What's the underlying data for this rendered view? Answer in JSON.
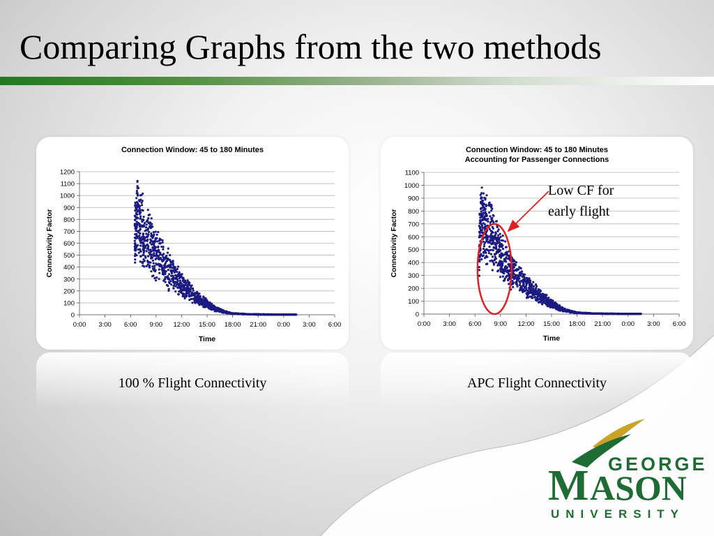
{
  "slide": {
    "title": "Comparing Graphs from the two methods",
    "annotation_lines": [
      "Low CF for",
      "early flight"
    ]
  },
  "captions": {
    "left": "100 % Flight Connectivity",
    "right": "APC Flight Connectivity"
  },
  "logo": {
    "line1": "GEORGE",
    "line2_initial": "M",
    "line2_rest": "ASON",
    "line3": "UNIVERSITY",
    "green": "#1f6b34",
    "gold": "#c9a227"
  },
  "colors": {
    "points": "#1a1a80",
    "highlight": "#e02020",
    "accent_green": "#1e7a1e"
  },
  "chart_data": [
    {
      "type": "scatter",
      "title": "Connection Window: 45 to 180 Minutes",
      "xlabel": "Time",
      "ylabel": "Connectivity Factor",
      "x_ticks": [
        "0:00",
        "3:00",
        "6:00",
        "9:00",
        "12:00",
        "15:00",
        "18:00",
        "21:00",
        "0:00",
        "3:00",
        "6:00"
      ],
      "xlim": [
        0,
        30
      ],
      "ylim": [
        0,
        1200
      ],
      "y_ticks": [
        0,
        100,
        200,
        300,
        400,
        500,
        600,
        700,
        800,
        900,
        1000,
        1100,
        1200
      ],
      "grid": true,
      "series": [
        {
          "point_count": 1400,
          "envelope": {
            "x": [
              6.5,
              6.8,
              7,
              8,
              9,
              10,
              11,
              12,
              13,
              14,
              15,
              16,
              17,
              18,
              20,
              22,
              24,
              25.5
            ],
            "y": [
              780,
              1040,
              950,
              780,
              640,
              520,
              420,
              320,
              240,
              170,
              110,
              60,
              30,
              12,
              5,
              3,
              2,
              2
            ]
          }
        }
      ]
    },
    {
      "type": "scatter",
      "title": "Connection Window: 45 to 180 Minutes",
      "subtitle": "Accounting for Passenger Connections",
      "xlabel": "Time",
      "ylabel": "Connectivity Factor",
      "x_ticks": [
        "0:00",
        "3:00",
        "6:00",
        "9:00",
        "12:00",
        "15:00",
        "18:00",
        "21:00",
        "0:00",
        "3:00",
        "6:00"
      ],
      "xlim": [
        0,
        30
      ],
      "ylim": [
        0,
        1100
      ],
      "y_ticks": [
        0,
        100,
        200,
        300,
        400,
        500,
        600,
        700,
        800,
        900,
        1000,
        1100
      ],
      "grid": true,
      "highlight": {
        "x_range": [
          6.3,
          10.3
        ],
        "y_range": [
          0,
          700
        ]
      },
      "series": [
        {
          "point_count": 1400,
          "envelope": {
            "x": [
              6.5,
              6.8,
              7,
              8,
              9,
              10,
              11,
              12,
              13,
              14,
              15,
              16,
              17,
              18,
              20,
              22,
              24,
              25.5
            ],
            "y": [
              640,
              960,
              880,
              760,
              560,
              450,
              360,
              280,
              210,
              150,
              100,
              55,
              28,
              12,
              5,
              3,
              2,
              2
            ]
          }
        }
      ]
    }
  ]
}
